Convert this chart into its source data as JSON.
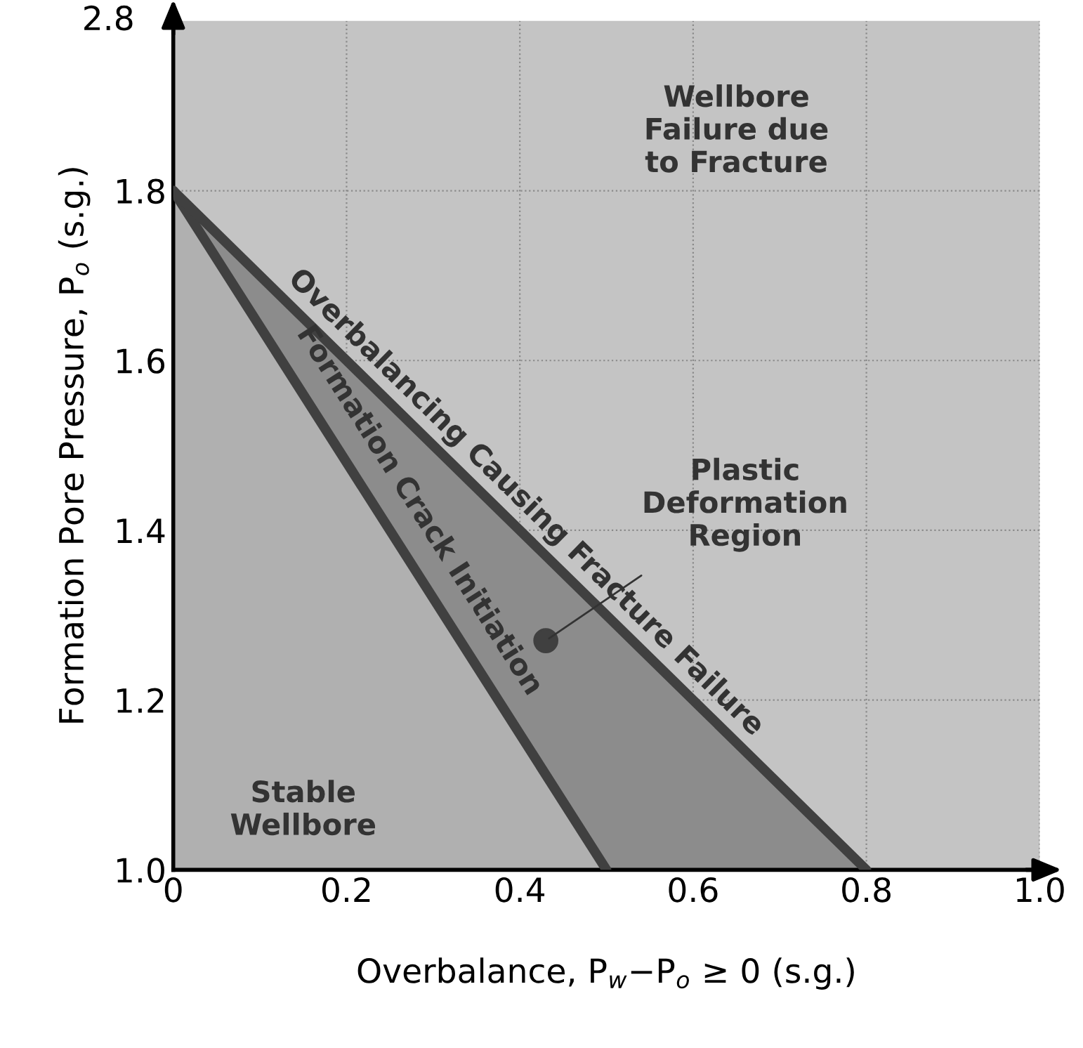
{
  "chart_data": {
    "type": "line",
    "xlabel": "Overbalance, P$_{w}$−P$_{o}$ ≥ 0 (s.g.)",
    "ylabel": "Formation Pore Pressure, P$_{o}$ (s.g.)",
    "series": [
      {
        "x": [
          0,
          0.5
        ],
        "values": [
          1.8,
          1.0
        ],
        "color": "#404040"
      },
      {
        "x": [
          0,
          0.8
        ],
        "values": [
          1.8,
          1.0
        ],
        "color": "#404040"
      },
      {
        "type": "scatter",
        "x": [
          0.43
        ],
        "values": [
          1.27
        ],
        "color": "#404040"
      }
    ],
    "xlim": [
      0,
      1.0
    ],
    "ylim": [
      1.0,
      2.0
    ],
    "xticks": [
      {
        "value": 0,
        "label": "0"
      },
      0.2,
      0.4,
      0.6,
      0.8,
      {
        "value": 1.0,
        "label": "1.0"
      }
    ],
    "yticks": [
      {
        "value": 1.0,
        "label": "1.0"
      },
      1.2,
      1.4,
      1.6,
      1.8
    ],
    "grid": true,
    "line_style": "solid",
    "annotations": [
      {
        "text": "Formation Crack Initiation",
        "x": 0.25,
        "y": 1.4
      },
      {
        "text": "Overbalancing Causing Fracture Failure",
        "x": 0.4,
        "y": 1.4
      },
      {
        "text": "Plastic Deformation Region",
        "x": 0.43,
        "y": 1.27
      },
      "Wellbore Failure due to Fracture",
      "Stable Wellbore",
      "2.8"
    ]
  }
}
